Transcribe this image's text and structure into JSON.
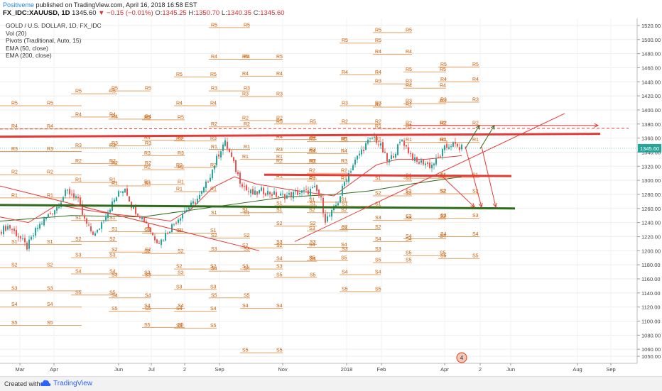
{
  "header": {
    "publisher": "Positiveme",
    "published_text": "published on TradingView.com, April 16, 2018 16:58 EST",
    "symbol": "FX_IDC:XAUUSD, 1D",
    "last": "1345.60",
    "change": "−0.15 (−0.01%)",
    "open_label": "O:",
    "open": "1345.25",
    "high_label": "H:",
    "high": "1350.70",
    "low_label": "L:",
    "low": "1340.35",
    "close_label": "C:",
    "close": "1345.60"
  },
  "legend": [
    "GOLD / U.S. DOLLAR, 1D, FX_IDC",
    "Vol (20)",
    "Pivots (Traditional, Auto, 15)",
    "EMA (50, close)",
    "EMA (200, close)"
  ],
  "footer": {
    "created": "Created with",
    "brand": "TradingView"
  },
  "colors": {
    "up": "#26a69a",
    "down": "#ef5350",
    "pivot": "#e0904a",
    "pivot_text": "#c85a00",
    "ema50": "#e53935",
    "ema200": "#2e7d32",
    "trend_red": "#e53935",
    "support_green": "#2e6b1a",
    "price_tag": "#26a69a",
    "dashed": "#e53935"
  },
  "chart_data": {
    "type": "candlestick",
    "y_axis": {
      "min": 1040,
      "max": 1530,
      "ticks": [
        1050,
        1060,
        1080,
        1100,
        1120,
        1140,
        1160,
        1180,
        1200,
        1220,
        1240,
        1260,
        1280,
        1300,
        1320,
        1340,
        1360,
        1380,
        1400,
        1420,
        1440,
        1460,
        1480,
        1500,
        1520
      ]
    },
    "x_axis": {
      "labels": [
        "Mar",
        "Apr",
        "Jun",
        "Jul",
        "2",
        "Sep",
        "Nov",
        "2018",
        "Feb",
        "Apr",
        "2",
        "Jun",
        "Aug",
        "Sep"
      ]
    },
    "last_price_tag": "1345.60",
    "price_path": [
      [
        0,
        1228
      ],
      [
        12,
        1235
      ],
      [
        25,
        1222
      ],
      [
        38,
        1205
      ],
      [
        52,
        1232
      ],
      [
        66,
        1248
      ],
      [
        80,
        1262
      ],
      [
        94,
        1285
      ],
      [
        108,
        1276
      ],
      [
        118,
        1245
      ],
      [
        126,
        1230
      ],
      [
        135,
        1222
      ],
      [
        145,
        1245
      ],
      [
        155,
        1262
      ],
      [
        166,
        1280
      ],
      [
        176,
        1290
      ],
      [
        186,
        1262
      ],
      [
        196,
        1252
      ],
      [
        206,
        1240
      ],
      [
        216,
        1220
      ],
      [
        225,
        1212
      ],
      [
        236,
        1228
      ],
      [
        246,
        1240
      ],
      [
        258,
        1255
      ],
      [
        270,
        1265
      ],
      [
        282,
        1278
      ],
      [
        292,
        1298
      ],
      [
        300,
        1318
      ],
      [
        308,
        1338
      ],
      [
        316,
        1355
      ],
      [
        322,
        1342
      ],
      [
        330,
        1320
      ],
      [
        338,
        1300
      ],
      [
        348,
        1285
      ],
      [
        358,
        1280
      ],
      [
        368,
        1285
      ],
      [
        380,
        1282
      ],
      [
        392,
        1278
      ],
      [
        405,
        1278
      ],
      [
        418,
        1282
      ],
      [
        432,
        1284
      ],
      [
        444,
        1288
      ],
      [
        452,
        1272
      ],
      [
        458,
        1244
      ],
      [
        466,
        1252
      ],
      [
        476,
        1270
      ],
      [
        486,
        1300
      ],
      [
        496,
        1320
      ],
      [
        506,
        1338
      ],
      [
        516,
        1352
      ],
      [
        526,
        1362
      ],
      [
        536,
        1348
      ],
      [
        546,
        1325
      ],
      [
        556,
        1340
      ],
      [
        566,
        1358
      ],
      [
        576,
        1340
      ],
      [
        586,
        1325
      ],
      [
        596,
        1326
      ],
      [
        606,
        1320
      ],
      [
        616,
        1330
      ],
      [
        626,
        1345
      ],
      [
        636,
        1352
      ],
      [
        646,
        1346
      ],
      [
        650,
        1345.6
      ]
    ],
    "ema50_path": [
      [
        0,
        1248
      ],
      [
        40,
        1240
      ],
      [
        80,
        1265
      ],
      [
        120,
        1258
      ],
      [
        160,
        1252
      ],
      [
        200,
        1248
      ],
      [
        240,
        1242
      ],
      [
        270,
        1260
      ],
      [
        300,
        1290
      ],
      [
        330,
        1305
      ],
      [
        360,
        1295
      ],
      [
        400,
        1288
      ],
      [
        440,
        1282
      ],
      [
        470,
        1278
      ],
      [
        500,
        1300
      ],
      [
        530,
        1322
      ],
      [
        560,
        1330
      ],
      [
        600,
        1330
      ],
      [
        650,
        1335
      ]
    ],
    "ema200_path": [
      [
        0,
        1242
      ],
      [
        100,
        1250
      ],
      [
        200,
        1248
      ],
      [
        300,
        1262
      ],
      [
        400,
        1276
      ],
      [
        470,
        1280
      ],
      [
        520,
        1285
      ],
      [
        580,
        1295
      ],
      [
        650,
        1305
      ]
    ],
    "annotations": {
      "upper_resistance_red": [
        [
          0,
          1362
        ],
        [
          845,
          1366
        ]
      ],
      "mid_resistance_red": [
        [
          372,
          1308
        ],
        [
          720,
          1306
        ]
      ],
      "support_green": [
        [
          0,
          1265
        ],
        [
          725,
          1260
        ]
      ],
      "dashed_red": [
        [
          0,
          1373
        ],
        [
          885,
          1374
        ]
      ],
      "descending_red": [
        [
          0,
          1292
        ],
        [
          365,
          1200
        ]
      ],
      "rising_red": [
        [
          415,
          1213
        ],
        [
          795,
          1395
        ]
      ],
      "arrow_up_1": [
        [
          655,
          1345
        ],
        [
          675,
          1378
        ]
      ],
      "arrow_up_2": [
        [
          676,
          1345
        ],
        [
          696,
          1378
        ]
      ],
      "arrow_right": [
        [
          575,
          1378
        ],
        [
          842,
          1378
        ]
      ],
      "arrow_down_1": [
        [
          655,
          1348
        ],
        [
          678,
          1262
        ]
      ],
      "arrow_down_2": [
        [
          678,
          1348
        ],
        [
          698,
          1262
        ]
      ],
      "arrow_down_3": [
        [
          620,
          1308
        ],
        [
          668,
          1262
        ]
      ]
    },
    "pivot_periods": [
      {
        "x0": 0,
        "x1": 115,
        "lc": 16,
        "lr": 66,
        "levels": {
          "R5": 1406,
          "R4": 1373,
          "R3": 1341,
          "R2": 1308,
          "R1": 1275,
          "S1": 1209,
          "S2": 1176,
          "S3": 1143,
          "S4": 1120,
          "S5": 1094
        }
      },
      {
        "x0": 100,
        "x1": 165,
        "lc": 106,
        "lr": 154,
        "levels": {
          "R5": 1423,
          "R4": 1390,
          "R3": 1346,
          "R2": 1324,
          "R1": 1297,
          "S1": 1243,
          "S2": 1213,
          "S3": 1190,
          "S4": 1167,
          "S5": 1137
        }
      },
      {
        "x0": 153,
        "x1": 212,
        "lc": 157,
        "lr": 204,
        "levels": {
          "R5": 1427,
          "R4": 1387,
          "R3": 1349,
          "R2": 1321,
          "R1": 1292,
          "S1": 1227,
          "S2": 1198,
          "S3": 1162,
          "S4": 1133,
          "S5": 1114
        }
      },
      {
        "x0": 200,
        "x1": 260,
        "lc": 203,
        "lr": 250,
        "levels": {
          "R5": 1386,
          "R4": 1357,
          "R3": 1335,
          "R2": 1315,
          "R1": 1294,
          "S1": 1225,
          "S2": 1196,
          "S3": 1165,
          "S4": 1118,
          "S5": 1091
        }
      },
      {
        "x0": 245,
        "x1": 305,
        "lc": 248,
        "lr": 296,
        "levels": {
          "R5": 1447,
          "R4": 1406,
          "R3": 1356,
          "R2": 1318,
          "R1": 1284,
          "S1": 1225,
          "S2": 1174,
          "S3": 1145,
          "S4": 1114,
          "S5": 1090
        }
      },
      {
        "x0": 294,
        "x1": 352,
        "lc": 297,
        "lr": 343,
        "levels": {
          "R5": 1517,
          "R4": 1472,
          "R3": 1427,
          "R2": 1376,
          "R1": 1344,
          "S1": 1250,
          "S2": 1218,
          "S3": 1199,
          "S4": 1171,
          "S5": 1133
        }
      },
      {
        "x0": 338,
        "x1": 398,
        "lc": 341,
        "lr": 389,
        "levels": {
          "R5": 1472,
          "R4": 1448,
          "R3": 1419,
          "R2": 1385,
          "R1": 1330,
          "S1": 1254,
          "S2": 1204,
          "S3": 1174,
          "S4": 1118,
          "S5": 1055
        }
      },
      {
        "x0": 386,
        "x1": 446,
        "lc": 389,
        "lr": 436,
        "levels": {
          "R5": 1380,
          "R4": 1358,
          "R3": 1340,
          "R2": 1324,
          "R1": 1302,
          "S1": 1264,
          "S2": 1235,
          "S3": 1209,
          "S4": 1185,
          "S5": 1162
        }
      },
      {
        "x0": 432,
        "x1": 490,
        "lc": 435,
        "lr": 480,
        "levels": {
          "R5": 1355,
          "R4": 1338,
          "R3": 1324,
          "R2": 1310,
          "R1": 1299,
          "S1": 1269,
          "S2": 1254,
          "S3": 1228,
          "S4": 1205,
          "S5": 1186
        }
      },
      {
        "x0": 478,
        "x1": 536,
        "lc": 481,
        "lr": 528,
        "levels": {
          "R5": 1495,
          "R4": 1450,
          "R3": 1406,
          "R2": 1380,
          "R1": 1355,
          "S1": 1263,
          "S2": 1230,
          "S3": 1199,
          "S4": 1166,
          "S5": 1142
        }
      },
      {
        "x0": 525,
        "x1": 580,
        "lc": 528,
        "lr": 571,
        "levels": {
          "R5": 1510,
          "R4": 1479,
          "R3": 1437,
          "R2": 1404,
          "R1": 1373,
          "S1": 1299,
          "S2": 1278,
          "S3": 1243,
          "S4": 1213,
          "S5": 1183
        }
      },
      {
        "x0": 568,
        "x1": 628,
        "lc": 571,
        "lr": 619,
        "levels": {
          "R5": 1454,
          "R4": 1431,
          "R3": 1409,
          "R2": 1378,
          "R1": 1354,
          "S1": 1303,
          "S2": 1281,
          "S3": 1245,
          "S4": 1217,
          "S5": 1193
        }
      },
      {
        "x0": 617,
        "x1": 675,
        "lc": 620,
        "lr": 665,
        "levels": {
          "R5": 1461,
          "R4": 1440,
          "R3": 1411,
          "R2": 1378,
          "R1": 1354,
          "S1": 1304,
          "S2": 1281,
          "S3": 1246,
          "S4": 1220,
          "S5": 1189
        }
      }
    ]
  }
}
